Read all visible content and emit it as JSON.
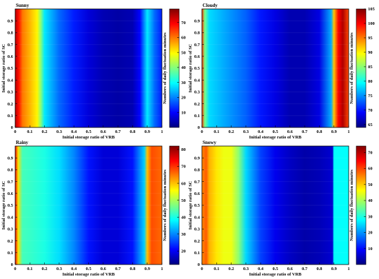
{
  "chart_data": [
    {
      "type": "heatmap",
      "title": "Sunny",
      "xlabel": "Initial storage ratio of VRB",
      "ylabel": "Initial storage ratio of SC",
      "colorbar_label": "Numbers of daily fluctuation minutes",
      "colormap": "jet",
      "xlim": [
        0,
        1
      ],
      "ylim": [
        0,
        1
      ],
      "x_ticks": [
        "0",
        "0.1",
        "0.2",
        "0.3",
        "0.4",
        "0.5",
        "0.6",
        "0.7",
        "0.8",
        "0.9",
        "1"
      ],
      "y_ticks": [
        "0",
        "0.1",
        "0.2",
        "0.3",
        "0.4",
        "0.5",
        "0.6",
        "0.7",
        "0.8",
        "0.9"
      ],
      "cbar_min": 0,
      "cbar_max": 79,
      "cbar_ticks": [
        "10",
        "20",
        "30",
        "40",
        "50",
        "60",
        "70"
      ],
      "x": [
        0.0,
        0.025,
        0.05,
        0.1,
        0.15,
        0.175,
        0.2,
        0.3,
        0.4,
        0.5,
        0.6,
        0.7,
        0.8,
        0.85,
        0.9,
        0.95,
        1.0
      ],
      "values": [
        75,
        68,
        60,
        55,
        50,
        40,
        28,
        18,
        12,
        7,
        4,
        3,
        4,
        10,
        28,
        18,
        12
      ],
      "note": "values vary primarily along x; approximately constant along y"
    },
    {
      "type": "heatmap",
      "title": "Cloudy",
      "xlabel": "Initial storage ratio of VRB",
      "ylabel": "Initial storage ratio of SC",
      "colorbar_label": "Numbers of daily fluctuation minutes",
      "colormap": "jet",
      "xlim": [
        0,
        1
      ],
      "ylim": [
        0,
        1
      ],
      "x_ticks": [
        "0",
        "0.1",
        "0.2",
        "0.3",
        "0.4",
        "0.5",
        "0.6",
        "0.7",
        "0.8",
        "0.9",
        "1"
      ],
      "y_ticks": [
        "0",
        "0.1",
        "0.2",
        "0.3",
        "0.4",
        "0.5",
        "0.6",
        "0.7",
        "0.8",
        "0.9"
      ],
      "cbar_min": 64,
      "cbar_max": 105,
      "cbar_ticks": [
        "65",
        "70",
        "75",
        "80",
        "85",
        "90",
        "95",
        "100",
        "105"
      ],
      "x": [
        0.0,
        0.02,
        0.05,
        0.1,
        0.2,
        0.3,
        0.4,
        0.5,
        0.6,
        0.7,
        0.8,
        0.88,
        0.9,
        0.93,
        0.96,
        1.0
      ],
      "values": [
        98,
        84,
        78,
        77,
        75,
        73,
        70,
        68,
        66,
        66,
        68,
        76,
        92,
        100,
        103,
        97
      ],
      "note": "values vary primarily along x; approximately constant along y"
    },
    {
      "type": "heatmap",
      "title": "Rainy",
      "xlabel": "Initial storage ratio of VRB",
      "ylabel": "Initial storage ratio of SC",
      "colorbar_label": "Numbers of daily fluctuation minutes",
      "colormap": "jet",
      "xlim": [
        0,
        1
      ],
      "ylim": [
        0,
        1
      ],
      "x_ticks": [
        "0",
        "0.1",
        "0.2",
        "0.3",
        "0.4",
        "0.5",
        "0.6",
        "0.7",
        "0.8",
        "0.9",
        "1"
      ],
      "y_ticks": [
        "0",
        "0.1",
        "0.2",
        "0.3",
        "0.4",
        "0.5",
        "0.6",
        "0.7",
        "0.8",
        "0.9"
      ],
      "cbar_min": 12,
      "cbar_max": 82,
      "cbar_ticks": [
        "20",
        "30",
        "40",
        "50",
        "60",
        "70",
        "80"
      ],
      "x": [
        0.0,
        0.02,
        0.05,
        0.1,
        0.2,
        0.3,
        0.4,
        0.5,
        0.6,
        0.7,
        0.8,
        0.88,
        0.9,
        0.93,
        1.0
      ],
      "values": [
        75,
        58,
        43,
        42,
        40,
        36,
        30,
        22,
        18,
        18,
        22,
        35,
        60,
        68,
        66
      ],
      "note": "values vary primarily along x; approximately constant along y"
    },
    {
      "type": "heatmap",
      "title": "Snowy",
      "xlabel": "Initial storage ratio of VRB",
      "ylabel": "Initial storage ratio of SC",
      "colorbar_label": "Numbers of daily fluctuation minutes",
      "colormap": "jet",
      "xlim": [
        0,
        1
      ],
      "ylim": [
        0,
        1
      ],
      "x_ticks": [
        "0",
        "0.1",
        "0.2",
        "0.3",
        "0.4",
        "0.5",
        "0.6",
        "0.7",
        "0.8",
        "0.9",
        "1"
      ],
      "y_ticks": [
        "0",
        "0.1",
        "0.2",
        "0.3",
        "0.4",
        "0.5",
        "0.6",
        "0.7",
        "0.8",
        "0.9"
      ],
      "cbar_min": 0,
      "cbar_max": 74,
      "cbar_ticks": [
        "10",
        "20",
        "30",
        "40",
        "50",
        "60",
        "70"
      ],
      "x": [
        0.0,
        0.03,
        0.05,
        0.1,
        0.15,
        0.2,
        0.25,
        0.3,
        0.4,
        0.5,
        0.6,
        0.7,
        0.8,
        0.89,
        0.9,
        1.0
      ],
      "values": [
        55,
        58,
        52,
        48,
        45,
        45,
        38,
        25,
        14,
        8,
        5,
        3,
        4,
        6,
        28,
        28
      ],
      "note": "values vary primarily along x; approximately constant along y"
    }
  ]
}
